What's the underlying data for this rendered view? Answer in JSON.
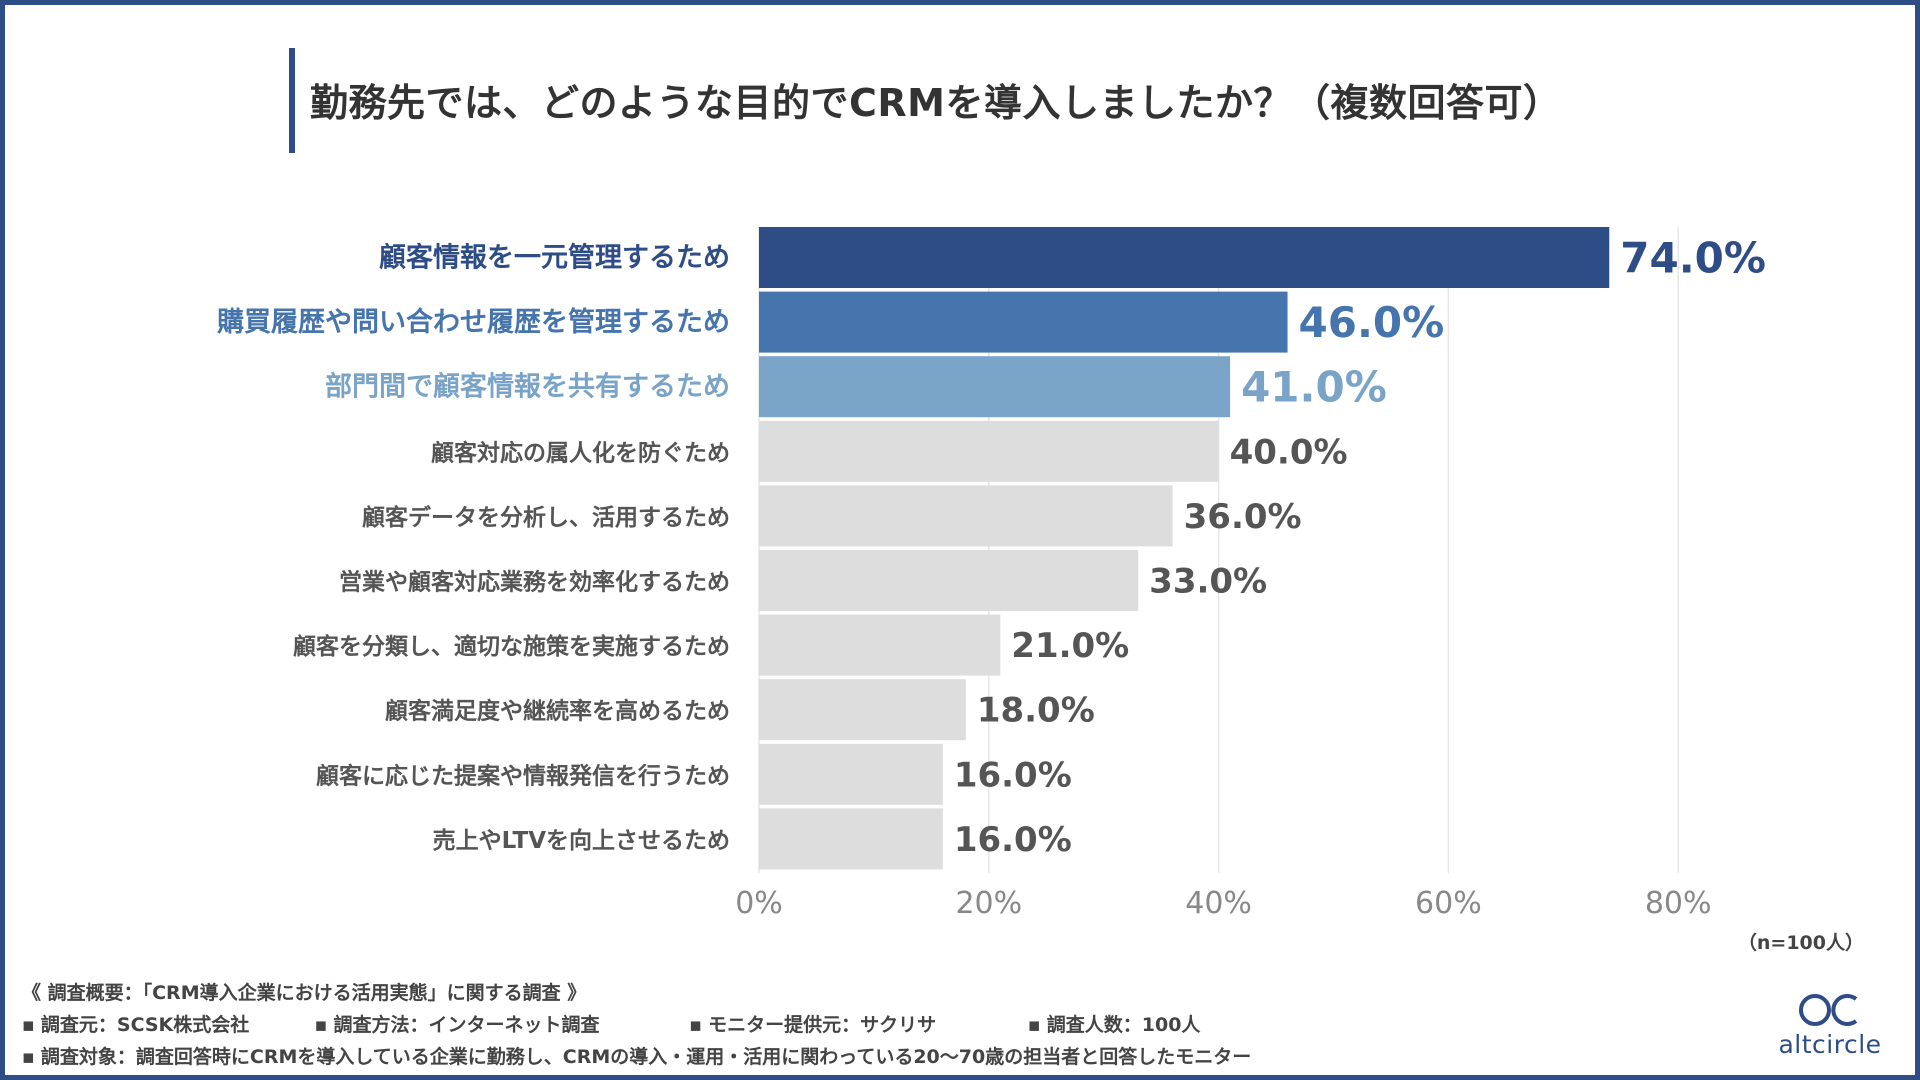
{
  "chart_data": {
    "type": "bar",
    "orientation": "horizontal",
    "title": "勤務先では、どのような目的でCRMを導入しましたか？（複数回答可）",
    "categories": [
      "顧客情報を一元管理するため",
      "購買履歴や問い合わせ履歴を管理するため",
      "部門間で顧客情報を共有するため",
      "顧客対応の属人化を防ぐため",
      "顧客データを分析し、活用するため",
      "営業や顧客対応業務を効率化するため",
      "顧客を分類し、適切な施策を実施するため",
      "顧客満足度や継続率を高めるため",
      "顧客に応じた提案や情報発信を行うため",
      "売上やLTVを向上させるため"
    ],
    "values": [
      74.0,
      46.0,
      41.0,
      40.0,
      36.0,
      33.0,
      21.0,
      18.0,
      16.0,
      16.0
    ],
    "value_labels": [
      "74.0%",
      "46.0%",
      "41.0%",
      "40.0%",
      "36.0%",
      "33.0%",
      "21.0%",
      "18.0%",
      "16.0%",
      "16.0%"
    ],
    "xlim": [
      0,
      80
    ],
    "xticks": [
      "0%",
      "20%",
      "40%",
      "60%",
      "80%"
    ],
    "grid": true,
    "colors": [
      "#2e4d86",
      "#4674ad",
      "#7aa3c8",
      "#dddddd",
      "#dddddd",
      "#dddddd",
      "#dddddd",
      "#dddddd",
      "#dddddd",
      "#dddddd"
    ],
    "label_colors": [
      "#2e4d86",
      "#4674ad",
      "#7aa3c8",
      "#555555",
      "#555555",
      "#555555",
      "#555555",
      "#555555",
      "#555555",
      "#555555"
    ],
    "note": "（n=100人）"
  },
  "footer": {
    "overview": "《 調査概要：「CRM導入企業における活用実態」に関する調査 》",
    "items": [
      "調査元：SCSK株式会社",
      "調査方法：インターネット調査",
      "モニター提供元：サクリサ",
      "調査人数：100人"
    ],
    "target": "調査対象：調査回答時にCRMを導入している企業に勤務し、CRMの導入・運用・活用に関わっている20〜70歳の担当者と回答したモニター"
  },
  "logo": {
    "text": "altcircle",
    "icon": "altcircle-logo-icon"
  }
}
